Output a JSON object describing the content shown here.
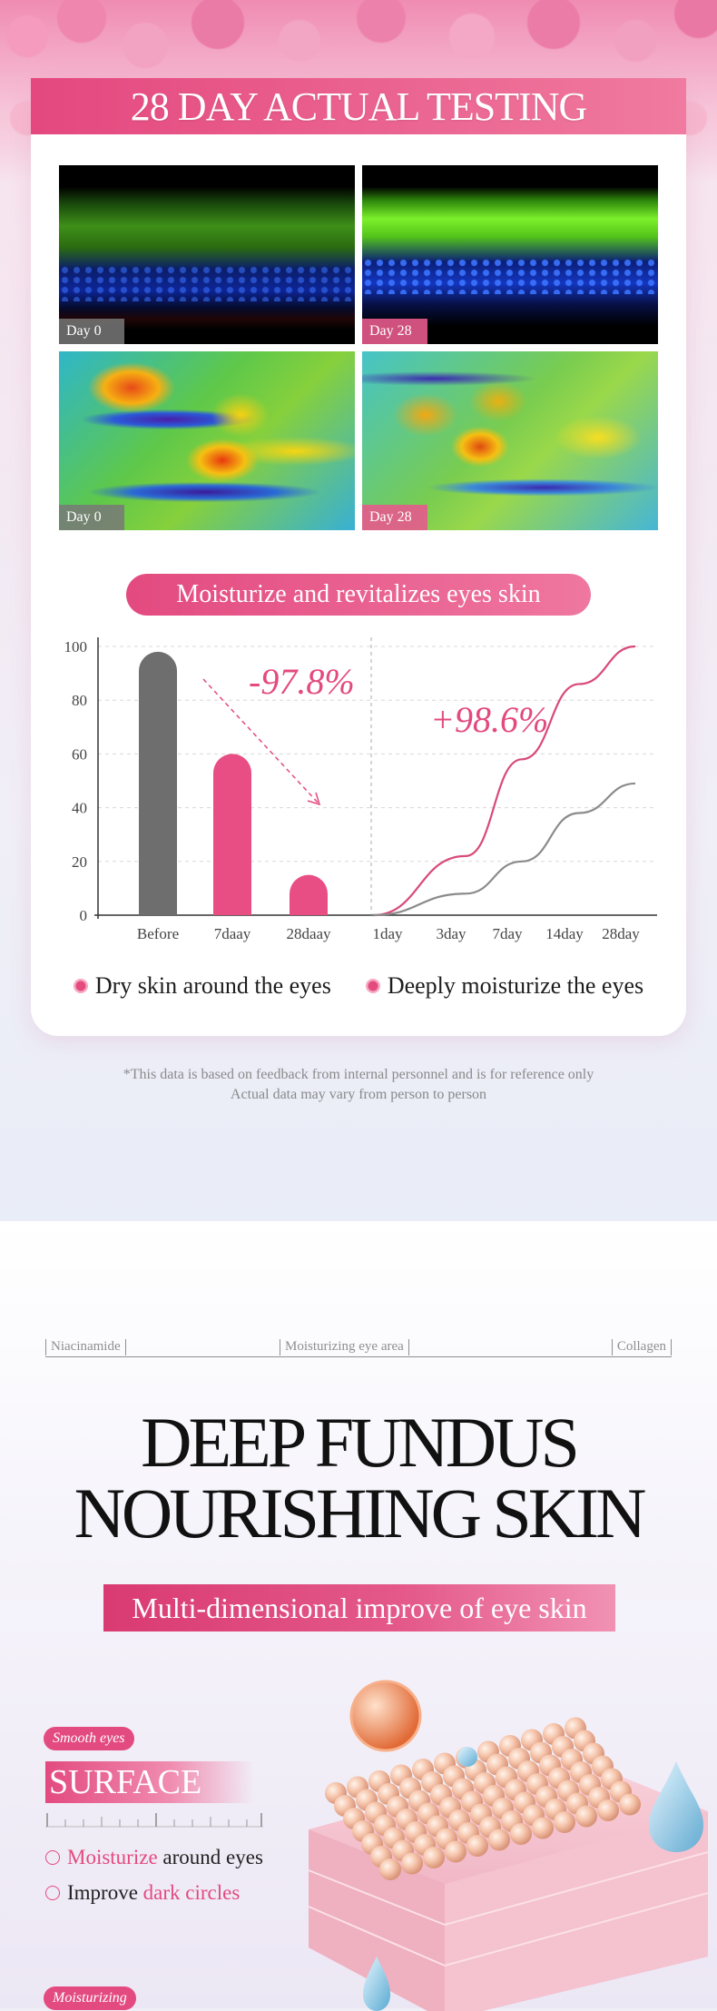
{
  "section1": {
    "title": "28 DAY ACTUAL TESTING",
    "photos": [
      {
        "label": "Day 0",
        "kind": "microscopy"
      },
      {
        "label": "Day 28",
        "kind": "microscopy"
      },
      {
        "label": "Day 0",
        "kind": "heatmap"
      },
      {
        "label": "Day 28",
        "kind": "heatmap"
      }
    ],
    "heading": "Moisturize and revitalizes eyes skin",
    "legend": {
      "dry": "Dry skin around the eyes",
      "moist": "Deeply moisturize the eyes"
    },
    "footnote": {
      "line1": "*This data is based on feedback from internal personnel and is for reference only",
      "line2": "Actual data may vary from person to person"
    }
  },
  "chart_data": {
    "type": "bar+line",
    "ylim": [
      0,
      100
    ],
    "yticks": [
      0,
      20,
      40,
      60,
      80,
      100
    ],
    "bars": {
      "categories": [
        "Before",
        "7daay",
        "28daay"
      ],
      "values": [
        98,
        60,
        15
      ],
      "colors": [
        "#6e6e6e",
        "#e84d83",
        "#e84d83"
      ],
      "annotation": "-97.8%"
    },
    "lines": {
      "x": [
        "1day",
        "3day",
        "7day",
        "14day",
        "28day"
      ],
      "series": [
        {
          "values": [
            0,
            22,
            58,
            86,
            100
          ],
          "color": "#d94a78"
        },
        {
          "values": [
            0,
            8,
            20,
            38,
            49
          ],
          "color": "#8a8a8a"
        }
      ],
      "annotation": "+98.6%"
    }
  },
  "section2": {
    "ingredients": [
      "Niacinamide",
      "Moisturizing eye area",
      "Collagen"
    ],
    "title_line1": "DEEP FUNDUS",
    "title_line2": "NOURISHING SKIN",
    "subtitle": "Multi-dimensional improve of eye skin",
    "tag1": "Smooth eyes",
    "surface": "SURFACE",
    "bullet1": {
      "hl": "Moisturize",
      "rest": " around eyes"
    },
    "bullet2": {
      "pre": "Improve ",
      "hl": "dark circles"
    },
    "tag2": "Moisturizing",
    "colors": {
      "accent": "#e34a7f"
    }
  }
}
